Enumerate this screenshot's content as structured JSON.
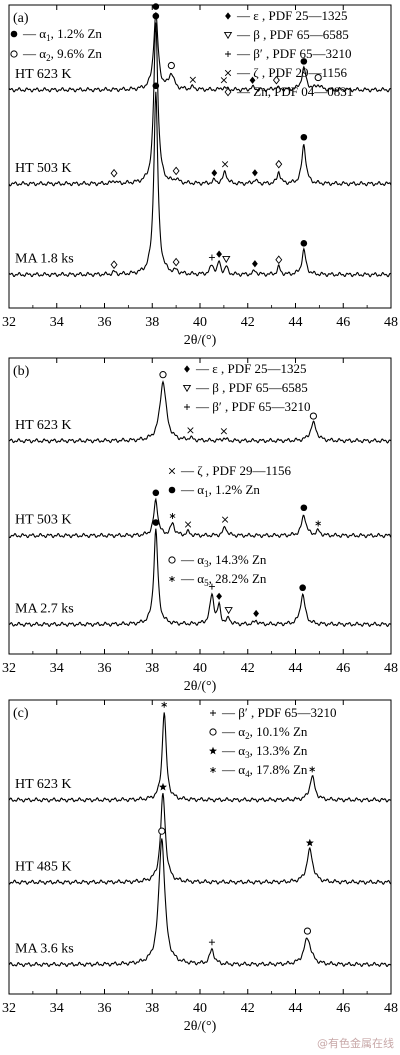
{
  "watermark": "@有色金属在线",
  "chart_data": [
    {
      "type": "line",
      "panel_label": "(a)",
      "xlabel": "2θ/(°)",
      "xlim": [
        32,
        48
      ],
      "x_ticks": [
        32,
        34,
        36,
        38,
        40,
        42,
        44,
        46,
        48
      ],
      "legend_left": [
        {
          "marker": "filled-circle",
          "text": "— α1, 1.2% Zn"
        },
        {
          "marker": "open-circle",
          "text": "— α2, 9.6% Zn"
        }
      ],
      "legend_right": [
        {
          "marker": "filled-diamond",
          "text": "— ε , PDF 25—1325"
        },
        {
          "marker": "open-triangle-down",
          "text": "— β , PDF 65—6585"
        },
        {
          "marker": "plus",
          "text": "— β′ , PDF 65—3210"
        },
        {
          "marker": "cross",
          "text": "— ζ , PDF 29—1156"
        },
        {
          "marker": "open-diamond",
          "text": "— Zn, PDF 04—0831"
        }
      ],
      "series": [
        {
          "name": "HT 623 K",
          "baseline": 0.72,
          "peaks": [
            {
              "x": 38.15,
              "h": 0.25,
              "w": 0.22,
              "marker": "filled-circle"
            },
            {
              "x": 38.8,
              "h": 0.05,
              "w": 0.25,
              "marker": "open-circle"
            },
            {
              "x": 39.7,
              "h": 0.008,
              "w": 0.2,
              "marker": "cross"
            },
            {
              "x": 41.0,
              "h": 0.008,
              "w": 0.2,
              "marker": "cross"
            },
            {
              "x": 42.2,
              "h": 0.008,
              "w": 0.2,
              "marker": "filled-diamond"
            },
            {
              "x": 43.2,
              "h": 0.008,
              "w": 0.2,
              "marker": "open-diamond"
            },
            {
              "x": 44.35,
              "h": 0.07,
              "w": 0.22,
              "marker": "filled-circle"
            },
            {
              "x": 44.95,
              "h": 0.015,
              "w": 0.25,
              "marker": "open-circle"
            }
          ]
        },
        {
          "name": "HT 503 K",
          "baseline": 0.41,
          "peaks": [
            {
              "x": 36.4,
              "h": 0.01,
              "w": 0.15,
              "marker": "open-diamond"
            },
            {
              "x": 38.15,
              "h": 0.53,
              "w": 0.2,
              "marker": "filled-circle"
            },
            {
              "x": 39.0,
              "h": 0.012,
              "w": 0.2,
              "marker": "open-diamond"
            },
            {
              "x": 40.6,
              "h": 0.01,
              "w": 0.18,
              "marker": "filled-diamond"
            },
            {
              "x": 41.05,
              "h": 0.04,
              "w": 0.18,
              "marker": "cross"
            },
            {
              "x": 42.3,
              "h": 0.012,
              "w": 0.18,
              "marker": "filled-diamond"
            },
            {
              "x": 43.3,
              "h": 0.04,
              "w": 0.15,
              "marker": "open-diamond"
            },
            {
              "x": 44.35,
              "h": 0.13,
              "w": 0.2,
              "marker": "filled-circle"
            }
          ]
        },
        {
          "name": "MA 1.8 ks",
          "baseline": 0.11,
          "peaks": [
            {
              "x": 36.4,
              "h": 0.008,
              "w": 0.15,
              "marker": "open-diamond"
            },
            {
              "x": 38.15,
              "h": 0.6,
              "w": 0.2,
              "marker": "filled-circle"
            },
            {
              "x": 39.0,
              "h": 0.01,
              "w": 0.18,
              "marker": "open-diamond"
            },
            {
              "x": 40.5,
              "h": 0.03,
              "w": 0.18,
              "marker": "plus"
            },
            {
              "x": 40.8,
              "h": 0.04,
              "w": 0.14,
              "marker": "filled-diamond"
            },
            {
              "x": 41.1,
              "h": 0.025,
              "w": 0.14,
              "marker": "open-triangle-down"
            },
            {
              "x": 42.3,
              "h": 0.012,
              "w": 0.18,
              "marker": "filled-diamond"
            },
            {
              "x": 43.3,
              "h": 0.025,
              "w": 0.15,
              "marker": "open-diamond"
            },
            {
              "x": 44.35,
              "h": 0.08,
              "w": 0.2,
              "marker": "filled-circle"
            }
          ]
        }
      ]
    },
    {
      "type": "line",
      "panel_label": "(b)",
      "xlabel": "2θ/(°)",
      "xlim": [
        32,
        48
      ],
      "x_ticks": [
        32,
        34,
        36,
        38,
        40,
        42,
        44,
        46,
        48
      ],
      "legend_blocks": [
        {
          "items": [
            {
              "marker": "filled-diamond",
              "text": "— ε , PDF 25—1325"
            },
            {
              "marker": "open-triangle-down",
              "text": "— β , PDF 65—6585"
            },
            {
              "marker": "plus",
              "text": "— β′ , PDF 65—3210"
            }
          ]
        },
        {
          "items": [
            {
              "marker": "cross",
              "text": "— ζ , PDF 29—1156"
            },
            {
              "marker": "filled-circle",
              "text": "— α1, 1.2% Zn"
            }
          ]
        },
        {
          "items": [
            {
              "marker": "open-circle",
              "text": "— α3, 14.3% Zn"
            },
            {
              "marker": "asterisk",
              "text": "— α5, 28.2% Zn"
            }
          ]
        }
      ],
      "series": [
        {
          "name": "HT 623 K",
          "baseline": 0.72,
          "peaks": [
            {
              "x": 38.45,
              "h": 0.2,
              "w": 0.32,
              "marker": "open-circle"
            },
            {
              "x": 39.6,
              "h": 0.008,
              "w": 0.2,
              "marker": "cross"
            },
            {
              "x": 41.0,
              "h": 0.008,
              "w": 0.2,
              "marker": "cross"
            },
            {
              "x": 44.75,
              "h": 0.06,
              "w": 0.3,
              "marker": "open-circle"
            }
          ]
        },
        {
          "name": "HT 503 K",
          "baseline": 0.4,
          "peaks": [
            {
              "x": 38.15,
              "h": 0.12,
              "w": 0.2,
              "marker": "filled-circle"
            },
            {
              "x": 38.85,
              "h": 0.04,
              "w": 0.2,
              "marker": "asterisk"
            },
            {
              "x": 39.5,
              "h": 0.012,
              "w": 0.18,
              "marker": "cross"
            },
            {
              "x": 41.05,
              "h": 0.03,
              "w": 0.18,
              "marker": "cross"
            },
            {
              "x": 44.35,
              "h": 0.07,
              "w": 0.22,
              "marker": "filled-circle"
            },
            {
              "x": 44.95,
              "h": 0.015,
              "w": 0.2,
              "marker": "asterisk"
            }
          ]
        },
        {
          "name": "MA 2.7 ks",
          "baseline": 0.1,
          "peaks": [
            {
              "x": 38.15,
              "h": 0.32,
              "w": 0.2,
              "marker": "filled-circle"
            },
            {
              "x": 40.5,
              "h": 0.1,
              "w": 0.2,
              "marker": "plus"
            },
            {
              "x": 40.8,
              "h": 0.06,
              "w": 0.14,
              "marker": "filled-diamond"
            },
            {
              "x": 41.2,
              "h": 0.02,
              "w": 0.15,
              "marker": "open-triangle-down"
            },
            {
              "x": 42.35,
              "h": 0.012,
              "w": 0.18,
              "marker": "filled-diamond"
            },
            {
              "x": 44.3,
              "h": 0.1,
              "w": 0.24,
              "marker": "filled-circle"
            }
          ]
        }
      ]
    },
    {
      "type": "line",
      "panel_label": "(c)",
      "xlabel": "2θ/(°)",
      "xlim": [
        32,
        48
      ],
      "x_ticks": [
        32,
        34,
        36,
        38,
        40,
        42,
        44,
        46,
        48
      ],
      "legend_right": [
        {
          "marker": "plus",
          "text": "— β′ , PDF 65—3210"
        },
        {
          "marker": "open-circle",
          "text": "— α2, 10.1% Zn"
        },
        {
          "marker": "star",
          "text": "— α3, 13.3% Zn"
        },
        {
          "marker": "asterisk",
          "text": "— α4, 17.8% Zn"
        }
      ],
      "series": [
        {
          "name": "HT 623 K",
          "baseline": 0.66,
          "peaks": [
            {
              "x": 38.5,
              "h": 0.3,
              "w": 0.2,
              "marker": "asterisk"
            },
            {
              "x": 44.7,
              "h": 0.08,
              "w": 0.25,
              "marker": "asterisk"
            }
          ]
        },
        {
          "name": "HT 485 K",
          "baseline": 0.38,
          "peaks": [
            {
              "x": 38.45,
              "h": 0.3,
              "w": 0.24,
              "marker": "star"
            },
            {
              "x": 44.6,
              "h": 0.11,
              "w": 0.3,
              "marker": "star"
            }
          ]
        },
        {
          "name": "MA 3.6 ks",
          "baseline": 0.1,
          "peaks": [
            {
              "x": 38.4,
              "h": 0.43,
              "w": 0.3,
              "marker": "open-circle"
            },
            {
              "x": 40.5,
              "h": 0.05,
              "w": 0.22,
              "marker": "plus"
            },
            {
              "x": 44.5,
              "h": 0.09,
              "w": 0.35,
              "marker": "open-circle"
            }
          ]
        }
      ]
    }
  ]
}
